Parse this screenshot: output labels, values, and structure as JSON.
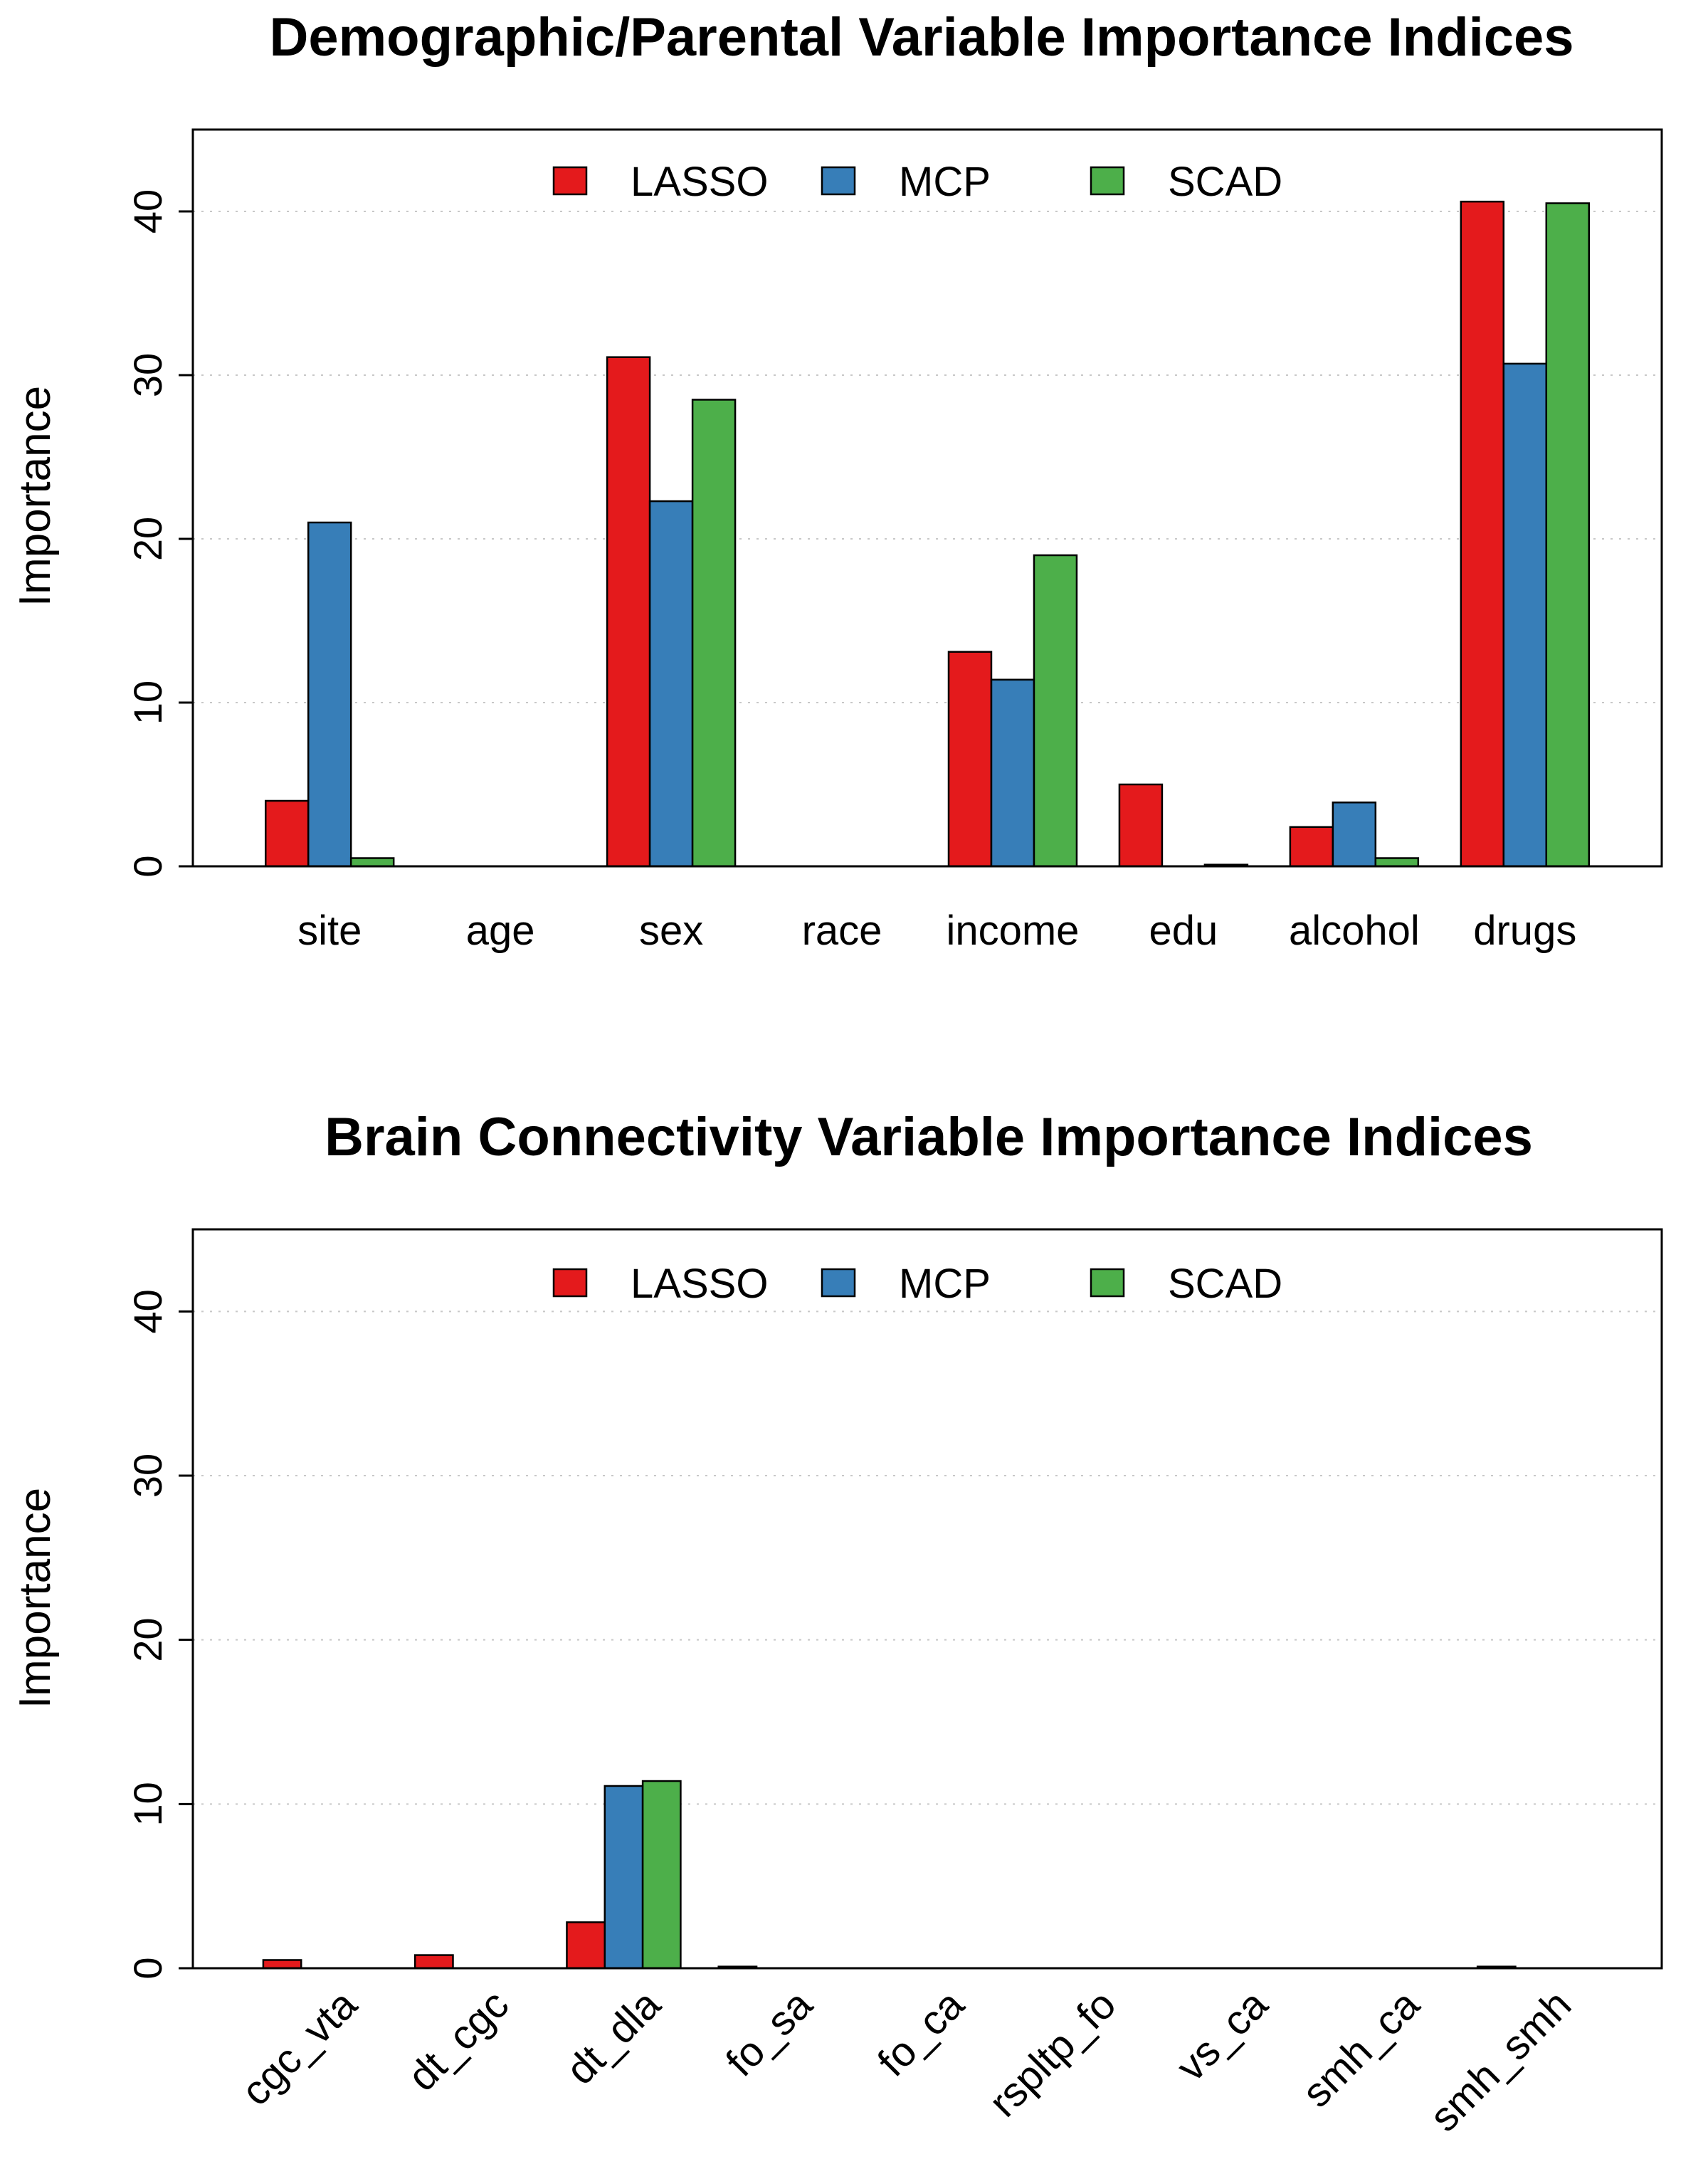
{
  "chart_data": [
    {
      "type": "bar",
      "title": "Demographic/Parental Variable Importance Indices",
      "xlabel": "",
      "ylabel": "Importance",
      "ylim": [
        0,
        45
      ],
      "yticks": [
        0,
        10,
        20,
        30,
        40
      ],
      "grid": true,
      "legend_position": "top",
      "categories": [
        "site",
        "age",
        "sex",
        "race",
        "income",
        "edu",
        "alcohol",
        "drugs"
      ],
      "series": [
        {
          "name": "LASSO",
          "color": "#e41a1c",
          "values": [
            4.0,
            0,
            31.1,
            0,
            13.1,
            5.0,
            2.4,
            40.6
          ]
        },
        {
          "name": "MCP",
          "color": "#377eb8",
          "values": [
            21.0,
            0,
            22.3,
            0,
            11.4,
            0,
            3.9,
            30.7
          ]
        },
        {
          "name": "SCAD",
          "color": "#4daf4a",
          "values": [
            0.5,
            0,
            28.5,
            0,
            19.0,
            0.1,
            0.5,
            40.5
          ]
        }
      ]
    },
    {
      "type": "bar",
      "title": "Brain Connectivity Variable Importance Indices",
      "xlabel": "",
      "ylabel": "Importance",
      "ylim": [
        0,
        45
      ],
      "yticks": [
        0,
        10,
        20,
        30,
        40
      ],
      "grid": true,
      "legend_position": "top",
      "categories": [
        "cgc_vta",
        "dt_cgc",
        "dt_dla",
        "fo_sa",
        "fo_ca",
        "rspltp_fo",
        "vs_ca",
        "smh_ca",
        "smh_smh"
      ],
      "series": [
        {
          "name": "LASSO",
          "color": "#e41a1c",
          "values": [
            0.5,
            0.8,
            2.8,
            0.1,
            0,
            0,
            0,
            0,
            0.1
          ]
        },
        {
          "name": "MCP",
          "color": "#377eb8",
          "values": [
            0,
            0,
            11.1,
            0,
            0,
            0,
            0,
            0,
            0
          ]
        },
        {
          "name": "SCAD",
          "color": "#4daf4a",
          "values": [
            0,
            0,
            11.4,
            0,
            0,
            0,
            0,
            0,
            0
          ]
        }
      ]
    }
  ]
}
